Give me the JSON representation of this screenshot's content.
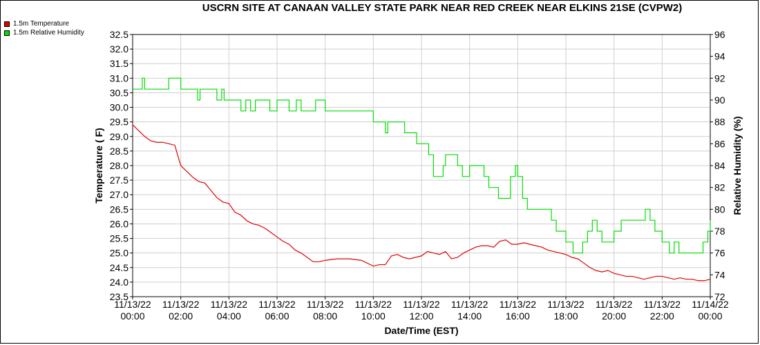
{
  "chart_data": {
    "type": "line",
    "title": "USCRN SITE AT CANAAN VALLEY STATE PARK NEAR RED CREEK NEAR ELKINS 21SE (CVPW2)",
    "xlabel": "Date/Time (EST)",
    "ylabel_left": "Temperature ( F)",
    "ylabel_right": "Relative Humidity (%)",
    "x_unit": "hours from 11/13/22 00:00",
    "xlim": [
      0,
      24
    ],
    "ylim_left": [
      23.5,
      32.5
    ],
    "ylim_right": [
      72,
      96
    ],
    "y_ticks_left": [
      "23.5",
      "24.0",
      "24.5",
      "25.0",
      "25.5",
      "26.0",
      "26.5",
      "27.0",
      "27.5",
      "28.0",
      "28.5",
      "29.0",
      "29.5",
      "30.0",
      "30.5",
      "31.0",
      "31.5",
      "32.0",
      "32.5"
    ],
    "y_ticks_right": [
      "72",
      "74",
      "76",
      "78",
      "80",
      "82",
      "84",
      "86",
      "88",
      "90",
      "92",
      "94",
      "96"
    ],
    "x_ticks": [
      {
        "date": "11/13/22",
        "time": "00:00"
      },
      {
        "date": "11/13/22",
        "time": "02:00"
      },
      {
        "date": "11/13/22",
        "time": "04:00"
      },
      {
        "date": "11/13/22",
        "time": "06:00"
      },
      {
        "date": "11/13/22",
        "time": "08:00"
      },
      {
        "date": "11/13/22",
        "time": "10:00"
      },
      {
        "date": "11/13/22",
        "time": "12:00"
      },
      {
        "date": "11/13/22",
        "time": "14:00"
      },
      {
        "date": "11/13/22",
        "time": "16:00"
      },
      {
        "date": "11/13/22",
        "time": "18:00"
      },
      {
        "date": "11/13/22",
        "time": "20:00"
      },
      {
        "date": "11/13/22",
        "time": "22:00"
      },
      {
        "date": "11/14/22",
        "time": "00:00"
      }
    ],
    "grid": true,
    "legend_position": "top-left",
    "series": [
      {
        "name": "1.5m Temperature",
        "axis": "left",
        "color": "#e00000",
        "x": [
          0,
          0.25,
          0.5,
          0.75,
          1.0,
          1.25,
          1.5,
          1.75,
          2.0,
          2.25,
          2.5,
          2.75,
          3.0,
          3.25,
          3.5,
          3.75,
          4.0,
          4.25,
          4.5,
          4.75,
          5.0,
          5.25,
          5.5,
          5.75,
          6.0,
          6.25,
          6.5,
          6.75,
          7.0,
          7.25,
          7.5,
          7.75,
          8.0,
          8.5,
          9.0,
          9.5,
          10.0,
          10.25,
          10.5,
          10.75,
          11.0,
          11.25,
          11.5,
          11.75,
          12.0,
          12.25,
          12.5,
          12.75,
          13.0,
          13.25,
          13.5,
          13.75,
          14.0,
          14.25,
          14.5,
          14.75,
          15.0,
          15.25,
          15.5,
          15.75,
          16.0,
          16.25,
          16.5,
          16.75,
          17.0,
          17.25,
          17.5,
          17.75,
          18.0,
          18.25,
          18.5,
          18.75,
          19.0,
          19.25,
          19.5,
          19.75,
          20.0,
          20.25,
          20.5,
          20.75,
          21.0,
          21.25,
          21.5,
          21.75,
          22.0,
          22.25,
          22.5,
          22.75,
          23.0,
          23.25,
          23.5,
          23.75,
          24.0
        ],
        "values": [
          29.4,
          29.2,
          29.0,
          28.85,
          28.8,
          28.8,
          28.75,
          28.7,
          28.0,
          27.8,
          27.6,
          27.45,
          27.4,
          27.15,
          26.9,
          26.75,
          26.7,
          26.4,
          26.3,
          26.1,
          26.0,
          25.95,
          25.85,
          25.7,
          25.55,
          25.4,
          25.3,
          25.1,
          25.0,
          24.85,
          24.7,
          24.7,
          24.75,
          24.8,
          24.8,
          24.75,
          24.55,
          24.6,
          24.6,
          24.9,
          24.95,
          24.85,
          24.8,
          24.85,
          24.9,
          25.05,
          25.0,
          24.95,
          25.05,
          24.8,
          24.85,
          25.0,
          25.1,
          25.2,
          25.25,
          25.25,
          25.2,
          25.4,
          25.45,
          25.3,
          25.3,
          25.35,
          25.3,
          25.25,
          25.2,
          25.1,
          25.05,
          25.0,
          24.95,
          24.85,
          24.8,
          24.65,
          24.5,
          24.4,
          24.35,
          24.4,
          24.3,
          24.25,
          24.2,
          24.2,
          24.15,
          24.1,
          24.15,
          24.2,
          24.2,
          24.15,
          24.1,
          24.15,
          24.1,
          24.1,
          24.05,
          24.05,
          24.1
        ]
      },
      {
        "name": "1.5m Relative Humidity",
        "axis": "right",
        "color": "#00dd00",
        "x": [
          0,
          0.3,
          0.4,
          0.5,
          1.0,
          1.4,
          1.5,
          2.0,
          2.5,
          2.7,
          2.8,
          3.0,
          3.5,
          3.7,
          3.8,
          4.0,
          4.2,
          4.5,
          4.7,
          4.9,
          5.1,
          5.6,
          5.7,
          6.0,
          6.5,
          6.8,
          7.0,
          7.5,
          7.6,
          8.0,
          9.0,
          9.8,
          10.0,
          10.5,
          10.6,
          10.8,
          11.0,
          11.3,
          11.5,
          11.8,
          12.0,
          12.3,
          12.5,
          12.7,
          12.9,
          13.0,
          13.3,
          13.5,
          13.7,
          14.0,
          14.2,
          14.4,
          14.6,
          14.8,
          15.0,
          15.2,
          15.3,
          15.5,
          15.7,
          15.9,
          16.0,
          16.2,
          16.4,
          16.6,
          17.0,
          17.3,
          17.4,
          17.6,
          17.8,
          18.0,
          18.3,
          18.5,
          18.7,
          18.9,
          19.1,
          19.3,
          19.5,
          19.7,
          20.0,
          20.3,
          20.5,
          20.7,
          21.0,
          21.3,
          21.5,
          21.7,
          22.0,
          22.3,
          22.5,
          22.7,
          23.0,
          23.3,
          23.5,
          23.7,
          23.9,
          24.0
        ],
        "values": [
          91,
          91,
          92,
          91,
          91,
          91,
          92,
          91,
          91,
          90,
          91,
          91,
          90,
          91,
          90,
          90,
          90,
          89,
          90,
          89,
          90,
          90,
          89,
          90,
          89,
          90,
          89,
          89,
          90,
          89,
          89,
          89,
          88,
          87,
          88,
          88,
          88,
          87,
          87,
          86,
          86,
          85,
          83,
          83,
          84,
          85,
          85,
          84,
          83,
          84,
          84,
          84,
          83,
          82,
          82,
          81,
          81,
          81,
          83,
          84,
          83,
          81,
          80,
          80,
          80,
          80,
          79,
          78,
          78,
          77,
          76,
          76,
          77,
          78,
          79,
          78,
          77,
          77,
          78,
          79,
          79,
          79,
          79,
          80,
          79,
          78,
          77,
          76,
          77,
          76,
          76,
          76,
          76,
          77,
          78,
          79
        ]
      }
    ]
  }
}
